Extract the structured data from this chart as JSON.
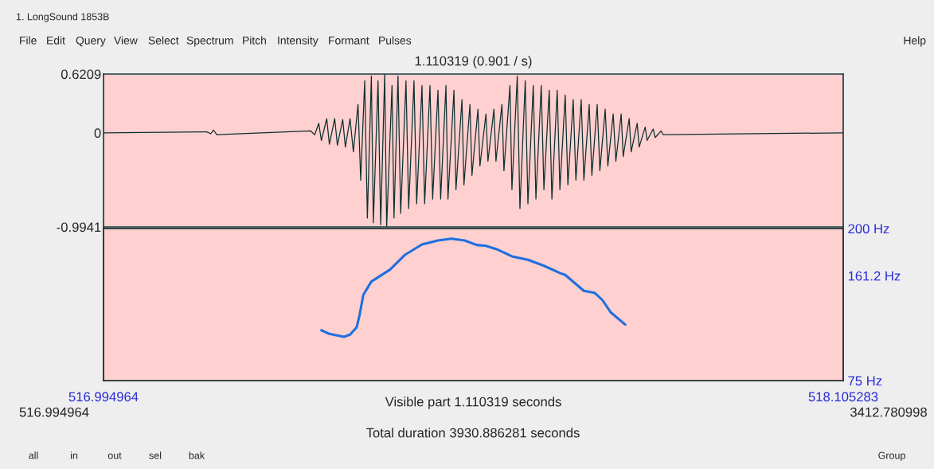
{
  "chart_data": [
    {
      "type": "line",
      "title": "1.110319 (0.901 / s)",
      "xlim": [
        516.994964,
        518.105283
      ],
      "ylim": [
        -0.9941,
        0.6209
      ],
      "yticks": [
        0.6209,
        0,
        -0.9941
      ],
      "tick_labels": "y",
      "grid": false,
      "series": [
        {
          "color": "#0d2f2f",
          "x": [
            516.995,
            517.15,
            517.156,
            517.16,
            517.165,
            517.306,
            517.312,
            517.318,
            517.322,
            517.33,
            517.334,
            517.342,
            517.346,
            517.354,
            517.358,
            517.365,
            517.37,
            517.377,
            517.381,
            517.387,
            517.391,
            517.397,
            517.4,
            517.407,
            517.411,
            517.417,
            517.42,
            517.428,
            517.431,
            517.437,
            517.441,
            517.449,
            517.453,
            517.461,
            517.465,
            517.473,
            517.477,
            517.485,
            517.489,
            517.497,
            517.501,
            517.509,
            517.512,
            517.521,
            517.524,
            517.533,
            517.536,
            517.545,
            517.548,
            517.557,
            517.56,
            517.569,
            517.572,
            517.581,
            517.584,
            517.593,
            517.596,
            517.605,
            517.608,
            517.616,
            517.62,
            517.628,
            517.632,
            517.64,
            517.644,
            517.652,
            517.656,
            517.664,
            517.668,
            517.676,
            517.68,
            517.688,
            517.692,
            517.7,
            517.704,
            517.712,
            517.716,
            517.724,
            517.728,
            517.736,
            517.74,
            517.748,
            517.752,
            517.76,
            517.764,
            517.772,
            517.775,
            517.784,
            517.787,
            517.796,
            517.799,
            517.808,
            517.811,
            517.82,
            517.823,
            517.832,
            517.835,
            518.105
          ],
          "values": [
            0,
            0.01,
            -0.01,
            0.03,
            -0.02,
            0.02,
            -0.02,
            0.1,
            -0.08,
            0.15,
            -0.12,
            0.15,
            -0.13,
            0.14,
            -0.15,
            0.15,
            -0.2,
            0.3,
            -0.5,
            0.55,
            -0.9,
            0.6,
            -0.95,
            0.55,
            -0.97,
            0.62,
            -0.99,
            0.5,
            -0.9,
            0.6,
            -0.85,
            0.55,
            -0.8,
            0.55,
            -0.75,
            0.5,
            -0.75,
            0.5,
            -0.7,
            0.45,
            -0.7,
            0.5,
            -0.7,
            0.45,
            -0.6,
            0.35,
            -0.55,
            0.3,
            -0.45,
            0.25,
            -0.35,
            0.2,
            -0.3,
            0.25,
            -0.3,
            0.3,
            -0.4,
            0.5,
            -0.6,
            0.6,
            -0.8,
            0.55,
            -0.75,
            0.5,
            -0.7,
            0.5,
            -0.6,
            0.45,
            -0.7,
            0.45,
            -0.6,
            0.4,
            -0.55,
            0.35,
            -0.5,
            0.35,
            -0.5,
            0.3,
            -0.45,
            0.3,
            -0.4,
            0.25,
            -0.35,
            0.2,
            -0.3,
            0.2,
            -0.25,
            0.15,
            -0.2,
            0.1,
            -0.15,
            0.06,
            -0.08,
            0.04,
            -0.05,
            0.02,
            -0.02,
            0
          ]
        }
      ],
      "annotations": [
        "1. LongSound 1853B",
        "File",
        "Edit",
        "Query",
        "View",
        "Select",
        "Spectrum",
        "Pitch",
        "Intensity",
        "Formant",
        "Pulses",
        "Help",
        "Total duration 3930.886281 seconds",
        "516.994964",
        "3412.780998",
        "all",
        "in",
        "out",
        "sel",
        "bak",
        "Group"
      ]
    },
    {
      "type": "line",
      "xlabel": "Visible part 1.110319 seconds",
      "xlim": [
        516.994964,
        518.105283
      ],
      "xticks": [
        516.994964,
        518.105283
      ],
      "y2lim": [
        75,
        200
      ],
      "y2ticks": [
        {
          "value": 200,
          "label": "200 Hz"
        },
        {
          "value": 161.2,
          "label": "161.2 Hz"
        },
        {
          "value": 75,
          "label": "75 Hz"
        }
      ],
      "grid": false,
      "series": [
        {
          "color": "#1f6fe0",
          "axis": "y2",
          "x": [
            517.322,
            517.334,
            517.356,
            517.365,
            517.375,
            517.379,
            517.385,
            517.397,
            517.425,
            517.447,
            517.473,
            517.497,
            517.517,
            517.537,
            517.555,
            517.569,
            517.585,
            517.608,
            517.632,
            517.656,
            517.68,
            517.688,
            517.716,
            517.732,
            517.744,
            517.756,
            517.778
          ],
          "values": [
            116.4,
            113.4,
            111.0,
            112.8,
            118.9,
            128.0,
            145.5,
            156.4,
            166.2,
            178.2,
            186.9,
            190.2,
            191.7,
            190.2,
            186.5,
            185.8,
            183.0,
            177.1,
            174.3,
            169.4,
            163.4,
            161.9,
            148.8,
            147.2,
            141.1,
            131.3,
            121.0
          ]
        }
      ]
    }
  ]
}
